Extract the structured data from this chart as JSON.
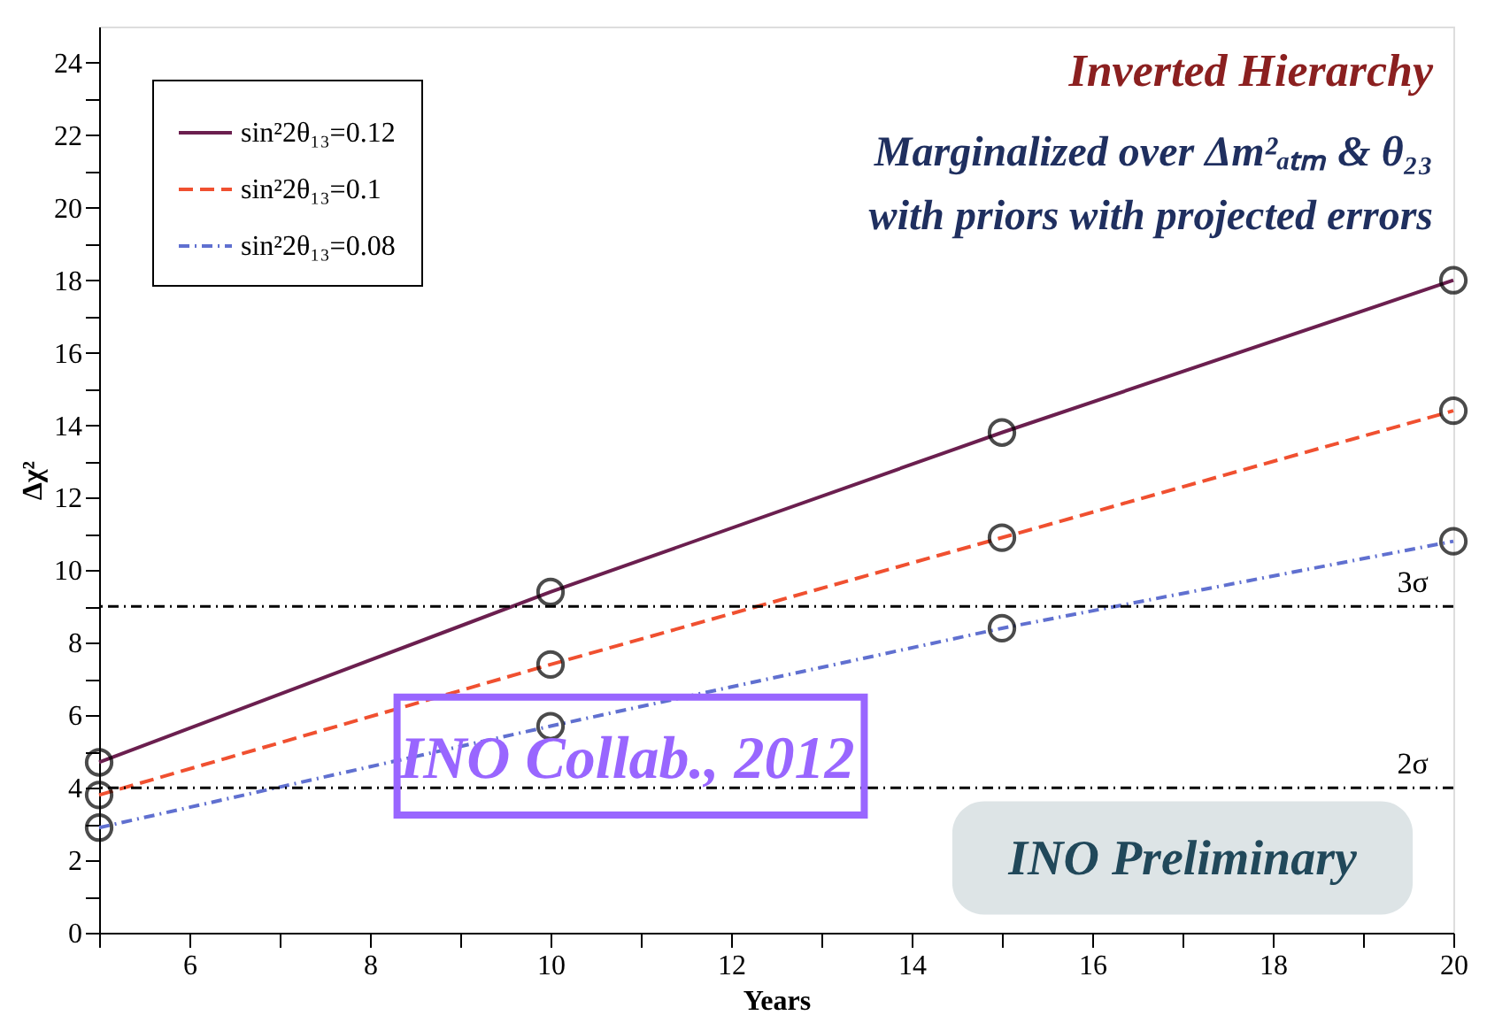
{
  "chart_data": {
    "type": "line",
    "title": "Inverted Hierarchy",
    "subtitle": "Marginalized over Δm²ₐₜₘ & θ₂₃\nwith priors with projected errors",
    "xlabel": "Years",
    "ylabel": "Δχ²",
    "x": [
      5,
      10,
      15,
      20
    ],
    "series": [
      {
        "name": "sin²2θ₁₃=0.12",
        "color": "#6b1f4f",
        "line_style": "solid",
        "values": [
          4.7,
          9.4,
          13.8,
          18.0
        ]
      },
      {
        "name": "sin²2θ₁₃=0.1",
        "color": "#f05030",
        "line_style": "dashed",
        "values": [
          3.8,
          7.4,
          10.9,
          14.4
        ]
      },
      {
        "name": "sin²2θ₁₃=0.08",
        "color": "#6070d0",
        "line_style": "dotted",
        "values": [
          2.9,
          5.7,
          8.4,
          10.8
        ]
      }
    ],
    "xlim": [
      5,
      20
    ],
    "xticks": [
      {
        "value": 5,
        "label": null
      },
      6,
      {
        "value": 7,
        "label": null
      },
      8,
      {
        "value": 9,
        "label": null
      },
      10,
      {
        "value": 11,
        "label": null
      },
      12,
      {
        "value": 13,
        "label": null
      },
      14,
      {
        "value": 15,
        "label": null
      },
      16,
      {
        "value": 17,
        "label": null
      },
      18,
      {
        "value": 19,
        "label": null
      },
      20
    ],
    "ylim": [
      0,
      25
    ],
    "yticks": [
      0,
      {
        "value": 1,
        "label": null
      },
      2,
      {
        "value": 3,
        "label": null
      },
      4,
      {
        "value": 5,
        "label": null
      },
      6,
      {
        "value": 7,
        "label": null
      },
      8,
      {
        "value": 9,
        "label": null
      },
      10,
      {
        "value": 11,
        "label": null
      },
      12,
      {
        "value": 13,
        "label": null
      },
      14,
      {
        "value": 15,
        "label": null
      },
      16,
      {
        "value": 17,
        "label": null
      },
      18,
      {
        "value": 19,
        "label": null
      },
      20,
      {
        "value": 21,
        "label": null
      },
      22,
      {
        "value": 23,
        "label": null
      },
      24
    ],
    "ref_lines": [
      {
        "axis": "y",
        "value": 9,
        "label": "3σ",
        "color": "#000000",
        "line_style": "dotted"
      },
      {
        "axis": "y",
        "value": 4,
        "label": "2σ",
        "color": "#000000",
        "line_style": "dotted"
      }
    ],
    "annotations": [
      "INO Collab., 2012",
      "INO Preliminary"
    ],
    "marker": "circle",
    "grid": false,
    "legend": "top left"
  }
}
